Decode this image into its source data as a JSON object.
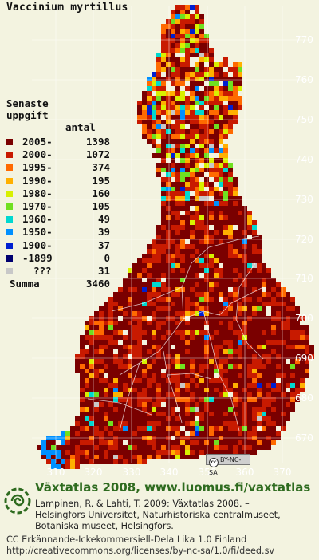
{
  "map": {
    "title": "Vaccinium myrtillus",
    "background": "#f3f3e0",
    "grid_color": "#ffffff",
    "axis_label_color": "#ffffff",
    "x_ticks": [
      "310",
      "320",
      "330",
      "340",
      "350",
      "360",
      "370"
    ],
    "y_ticks": [
      "770",
      "760",
      "750",
      "740",
      "730",
      "720",
      "710",
      "700",
      "690",
      "680",
      "670"
    ],
    "license_badge": "BY-NC-SA"
  },
  "legend": {
    "title_line1": "Senaste",
    "title_line2": "uppgift",
    "count_header": "antal",
    "entries": [
      {
        "label": "2005-",
        "count": "1398",
        "color": "#7a0000"
      },
      {
        "label": "2000-",
        "count": "1072",
        "color": "#c81a00"
      },
      {
        "label": "1995-",
        "count": "374",
        "color": "#ff6a00"
      },
      {
        "label": "1990-",
        "count": "195",
        "color": "#ffb000"
      },
      {
        "label": "1980-",
        "count": "160",
        "color": "#d8f000"
      },
      {
        "label": "1970-",
        "count": "105",
        "color": "#70e020"
      },
      {
        "label": "1960-",
        "count": "49",
        "color": "#00d8d0"
      },
      {
        "label": "1950-",
        "count": "39",
        "color": "#0090ff"
      },
      {
        "label": "1900-",
        "count": "37",
        "color": "#0020d0"
      },
      {
        "label": "-1899",
        "count": "0",
        "color": "#000070"
      },
      {
        "label": "???",
        "count": "31",
        "color": "#c8c8c8"
      }
    ],
    "summa_label": "Summa",
    "summa_count": "3460"
  },
  "footer": {
    "site": "Växtatlas 2008, www.luomus.fi/vaxtatlas",
    "citation_line1": "Lampinen, R. & Lahti, T. 2009: Växtatlas 2008. –",
    "citation_line2": "Helsingfors Universitet, Naturhistoriska centralmuseet,",
    "citation_line3": "Botaniska museet, Helsingfors.",
    "license_line1": "CC Erkännande-Ickekommersiell-Dela Lika 1.0 Finland",
    "license_line2": "http://creativecommons.org/licenses/by-nc-sa/1.0/fi/deed.sv"
  }
}
